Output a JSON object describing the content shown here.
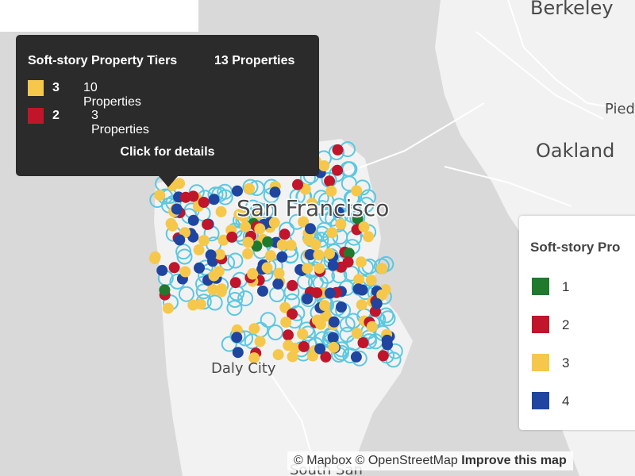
{
  "map": {
    "places": {
      "berkeley": "Berkeley",
      "oakland": "Oakland",
      "piedmont_partial": "Pied",
      "san_francisco": "San Francisco",
      "daly_city": "Daly City",
      "south_san_partial": "South San"
    },
    "colors": {
      "water": "#d9d9d9",
      "land": "#f2f2f2",
      "outline": "#5bc8e0"
    }
  },
  "tooltip": {
    "title": "Soft-story Property Tiers",
    "total": "13 Properties",
    "rows": [
      {
        "tier": "3",
        "count": "10 Properties",
        "color": "#f5c84c"
      },
      {
        "tier": "2",
        "count": "3 Properties",
        "color": "#c0152a"
      }
    ],
    "action": "Click for details"
  },
  "legend": {
    "title": "Soft-story Pro",
    "items": [
      {
        "label": "1",
        "color": "#1f7a2e"
      },
      {
        "label": "2",
        "color": "#c0152a"
      },
      {
        "label": "3",
        "color": "#f5c84c"
      },
      {
        "label": "4",
        "color": "#1f45a0"
      }
    ]
  },
  "attribution": {
    "mapbox": "© Mapbox",
    "osm": "© OpenStreetMap",
    "improve": "Improve this map"
  }
}
